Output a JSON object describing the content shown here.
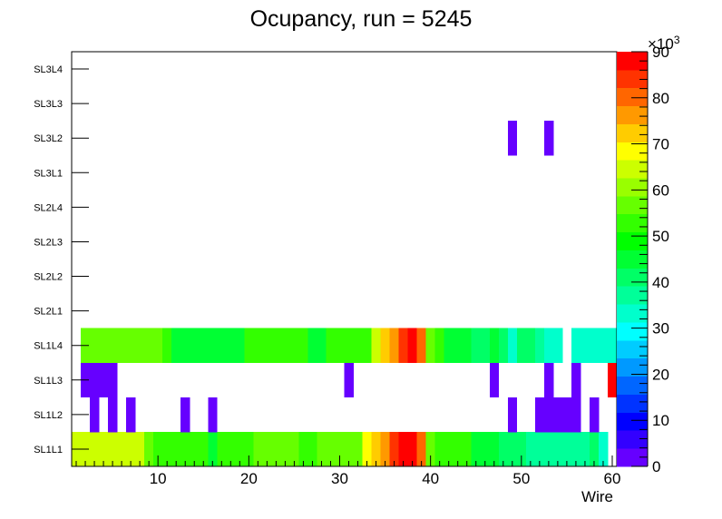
{
  "chart_data": {
    "type": "heatmap",
    "title": "Ocupancy, run = 5245",
    "xlabel": "Wire",
    "ylabel": "",
    "xlim": [
      0.5,
      60.5
    ],
    "x_ticks": [
      "10",
      "20",
      "30",
      "40",
      "50",
      "60"
    ],
    "x_tick_values": [
      10,
      20,
      30,
      40,
      50,
      60
    ],
    "y_categories": [
      "SL1L1",
      "SL1L2",
      "SL1L3",
      "SL1L4",
      "SL2L1",
      "SL2L2",
      "SL2L3",
      "SL2L4",
      "SL3L1",
      "SL3L2",
      "SL3L3",
      "SL3L4"
    ],
    "zlim": [
      0,
      90000
    ],
    "z_ticks": [
      "0",
      "10",
      "20",
      "30",
      "40",
      "50",
      "60",
      "70",
      "80",
      "90"
    ],
    "z_tick_values": [
      0,
      10000,
      20000,
      30000,
      40000,
      50000,
      60000,
      70000,
      80000,
      90000
    ],
    "z_exponent_base": "×10",
    "z_exponent_power": "3",
    "palette": [
      "#6600ff",
      "#3300ff",
      "#0000ff",
      "#0033ff",
      "#0066ff",
      "#0099ff",
      "#00ccff",
      "#00ffff",
      "#00ffcc",
      "#00ff99",
      "#00ff66",
      "#00ff33",
      "#00ff00",
      "#33ff00",
      "#66ff00",
      "#99ff00",
      "#ccff00",
      "#ffff00",
      "#ffcc00",
      "#ff9900",
      "#ff6600",
      "#ff3300",
      "#ff0000"
    ],
    "rows": [
      {
        "layer": "SL1L1",
        "values": [
          64000,
          64000,
          64000,
          64000,
          64000,
          64000,
          64000,
          64000,
          58000,
          52000,
          52000,
          52000,
          52000,
          52000,
          52000,
          45000,
          52000,
          52000,
          52000,
          52000,
          56000,
          56000,
          56000,
          56000,
          56000,
          52000,
          52000,
          56000,
          56000,
          56000,
          56000,
          56000,
          70000,
          73000,
          78000,
          83000,
          88000,
          88000,
          80000,
          56000,
          52000,
          52000,
          52000,
          52000,
          45000,
          45000,
          45000,
          42000,
          42000,
          42000,
          38000,
          38000,
          38000,
          38000,
          38000,
          38000,
          38000,
          40000,
          34000,
          0
        ]
      },
      {
        "layer": "SL1L2",
        "values": [
          0,
          0,
          2000,
          0,
          2000,
          0,
          2000,
          0,
          0,
          0,
          0,
          0,
          2000,
          0,
          0,
          2000,
          0,
          0,
          0,
          0,
          0,
          0,
          0,
          0,
          0,
          0,
          0,
          0,
          0,
          0,
          0,
          0,
          0,
          0,
          0,
          0,
          0,
          0,
          0,
          0,
          0,
          0,
          0,
          0,
          0,
          0,
          0,
          0,
          2000,
          0,
          0,
          2000,
          2000,
          2000,
          2000,
          2000,
          0,
          2000,
          0,
          0
        ]
      },
      {
        "layer": "SL1L3",
        "values": [
          0,
          2000,
          2000,
          2000,
          2000,
          0,
          0,
          0,
          0,
          0,
          0,
          0,
          0,
          0,
          0,
          0,
          0,
          0,
          0,
          0,
          0,
          0,
          0,
          0,
          0,
          0,
          0,
          0,
          0,
          0,
          2000,
          0,
          0,
          0,
          0,
          0,
          0,
          0,
          0,
          0,
          0,
          0,
          0,
          0,
          0,
          0,
          2000,
          0,
          0,
          0,
          0,
          0,
          2000,
          0,
          0,
          2000,
          0,
          0,
          0,
          88000
        ]
      },
      {
        "layer": "SL1L4",
        "values": [
          0,
          56000,
          56000,
          56000,
          56000,
          56000,
          56000,
          56000,
          56000,
          56000,
          52000,
          44000,
          44000,
          44000,
          44000,
          44000,
          44000,
          44000,
          44000,
          52000,
          52000,
          52000,
          52000,
          52000,
          52000,
          52000,
          45000,
          45000,
          52000,
          52000,
          52000,
          52000,
          52000,
          65000,
          73000,
          78000,
          85000,
          88000,
          82000,
          58000,
          52000,
          45000,
          45000,
          45000,
          40000,
          40000,
          45000,
          42000,
          35000,
          40000,
          40000,
          38000,
          35000,
          35000,
          0,
          35000,
          35000,
          35000,
          35000,
          35000
        ]
      },
      {
        "layer": "SL2L1",
        "values": [
          0,
          0,
          0,
          0,
          0,
          0,
          0,
          0,
          0,
          0,
          0,
          0,
          0,
          0,
          0,
          0,
          0,
          0,
          0,
          0,
          0,
          0,
          0,
          0,
          0,
          0,
          0,
          0,
          0,
          0,
          0,
          0,
          0,
          0,
          0,
          0,
          0,
          0,
          0,
          0,
          0,
          0,
          0,
          0,
          0,
          0,
          0,
          0,
          0,
          0,
          0,
          0,
          0,
          0,
          0,
          0,
          0,
          0,
          0,
          0
        ]
      },
      {
        "layer": "SL2L2",
        "values": [
          0,
          0,
          0,
          0,
          0,
          0,
          0,
          0,
          0,
          0,
          0,
          0,
          0,
          0,
          0,
          0,
          0,
          0,
          0,
          0,
          0,
          0,
          0,
          0,
          0,
          0,
          0,
          0,
          0,
          0,
          0,
          0,
          0,
          0,
          0,
          0,
          0,
          0,
          0,
          0,
          0,
          0,
          0,
          0,
          0,
          0,
          0,
          0,
          0,
          0,
          0,
          0,
          0,
          0,
          0,
          0,
          0,
          0,
          0,
          0
        ]
      },
      {
        "layer": "SL2L3",
        "values": [
          0,
          0,
          0,
          0,
          0,
          0,
          0,
          0,
          0,
          0,
          0,
          0,
          0,
          0,
          0,
          0,
          0,
          0,
          0,
          0,
          0,
          0,
          0,
          0,
          0,
          0,
          0,
          0,
          0,
          0,
          0,
          0,
          0,
          0,
          0,
          0,
          0,
          0,
          0,
          0,
          0,
          0,
          0,
          0,
          0,
          0,
          0,
          0,
          0,
          0,
          0,
          0,
          0,
          0,
          0,
          0,
          0,
          0,
          0,
          0
        ]
      },
      {
        "layer": "SL2L4",
        "values": [
          0,
          0,
          0,
          0,
          0,
          0,
          0,
          0,
          0,
          0,
          0,
          0,
          0,
          0,
          0,
          0,
          0,
          0,
          0,
          0,
          0,
          0,
          0,
          0,
          0,
          0,
          0,
          0,
          0,
          0,
          0,
          0,
          0,
          0,
          0,
          0,
          0,
          0,
          0,
          0,
          0,
          0,
          0,
          0,
          0,
          0,
          0,
          0,
          0,
          0,
          0,
          0,
          0,
          0,
          0,
          0,
          0,
          0,
          0,
          0
        ]
      },
      {
        "layer": "SL3L1",
        "values": [
          0,
          0,
          0,
          0,
          0,
          0,
          0,
          0,
          0,
          0,
          0,
          0,
          0,
          0,
          0,
          0,
          0,
          0,
          0,
          0,
          0,
          0,
          0,
          0,
          0,
          0,
          0,
          0,
          0,
          0,
          0,
          0,
          0,
          0,
          0,
          0,
          0,
          0,
          0,
          0,
          0,
          0,
          0,
          0,
          0,
          0,
          0,
          0,
          0,
          0,
          0,
          0,
          0,
          0,
          0,
          0,
          0,
          0,
          0,
          0
        ]
      },
      {
        "layer": "SL3L2",
        "values": [
          0,
          0,
          0,
          0,
          0,
          0,
          0,
          0,
          0,
          0,
          0,
          0,
          0,
          0,
          0,
          0,
          0,
          0,
          0,
          0,
          0,
          0,
          0,
          0,
          0,
          0,
          0,
          0,
          0,
          0,
          0,
          0,
          0,
          0,
          0,
          0,
          0,
          0,
          0,
          0,
          0,
          0,
          0,
          0,
          0,
          0,
          0,
          0,
          2000,
          0,
          0,
          0,
          2000,
          0,
          0,
          0,
          0,
          0,
          0,
          0
        ]
      },
      {
        "layer": "SL3L3",
        "values": [
          0,
          0,
          0,
          0,
          0,
          0,
          0,
          0,
          0,
          0,
          0,
          0,
          0,
          0,
          0,
          0,
          0,
          0,
          0,
          0,
          0,
          0,
          0,
          0,
          0,
          0,
          0,
          0,
          0,
          0,
          0,
          0,
          0,
          0,
          0,
          0,
          0,
          0,
          0,
          0,
          0,
          0,
          0,
          0,
          0,
          0,
          0,
          0,
          0,
          0,
          0,
          0,
          0,
          0,
          0,
          0,
          0,
          0,
          0,
          0
        ]
      },
      {
        "layer": "SL3L4",
        "values": [
          0,
          0,
          0,
          0,
          0,
          0,
          0,
          0,
          0,
          0,
          0,
          0,
          0,
          0,
          0,
          0,
          0,
          0,
          0,
          0,
          0,
          0,
          0,
          0,
          0,
          0,
          0,
          0,
          0,
          0,
          0,
          0,
          0,
          0,
          0,
          0,
          0,
          0,
          0,
          0,
          0,
          0,
          0,
          0,
          0,
          0,
          0,
          0,
          0,
          0,
          0,
          0,
          0,
          0,
          0,
          0,
          0,
          0,
          0,
          0
        ]
      }
    ]
  }
}
